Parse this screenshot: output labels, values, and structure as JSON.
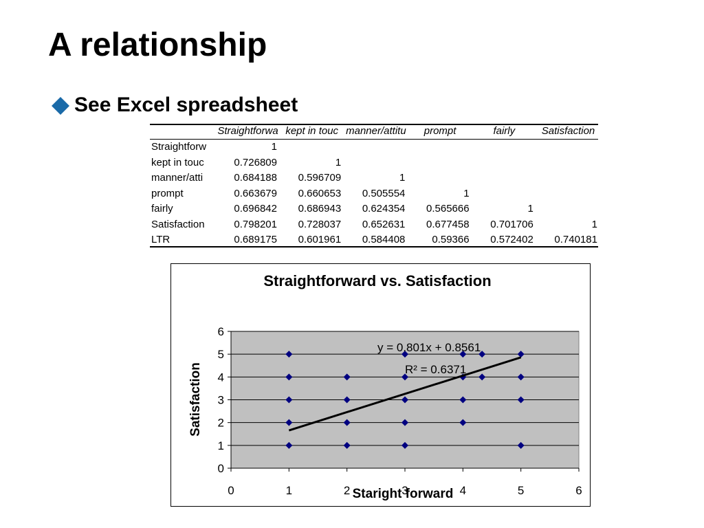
{
  "header": {
    "title": "A relationship"
  },
  "bullets": [
    "See Excel spreadsheet"
  ],
  "table": {
    "columns": [
      "Straightforwa",
      "kept in touc",
      "manner/attitu",
      "prompt",
      "fairly",
      "Satisfaction"
    ],
    "rows": [
      {
        "label": "Straightforw",
        "values": [
          1
        ]
      },
      {
        "label": "kept in touc",
        "values": [
          0.726809,
          1
        ]
      },
      {
        "label": "manner/atti",
        "values": [
          0.684188,
          0.596709,
          1
        ]
      },
      {
        "label": "prompt",
        "values": [
          0.663679,
          0.660653,
          0.505554,
          1
        ]
      },
      {
        "label": "fairly",
        "values": [
          0.696842,
          0.686943,
          0.624354,
          0.565666,
          1
        ]
      },
      {
        "label": "Satisfaction",
        "values": [
          0.798201,
          0.728037,
          0.652631,
          0.677458,
          0.701706,
          1
        ]
      },
      {
        "label": "LTR",
        "values": [
          0.689175,
          0.601961,
          0.584408,
          0.59366,
          0.572402,
          0.740181
        ]
      }
    ]
  },
  "chart_data": {
    "type": "scatter",
    "title": "Straightforward vs. Satisfaction",
    "x_label": "Staright forward",
    "y_label": "Satisfaction",
    "x": [
      1,
      1,
      1,
      1,
      1,
      2,
      2,
      2,
      2,
      3,
      3,
      3,
      3,
      3,
      4,
      4,
      4,
      4,
      4.33,
      4.33,
      5,
      5,
      5,
      5
    ],
    "y": [
      5,
      4,
      3,
      2,
      1,
      4,
      3,
      2,
      1,
      5,
      4,
      3,
      2,
      1,
      5,
      4,
      3,
      2,
      5,
      4,
      5,
      4,
      3,
      1
    ],
    "color": "#000080",
    "xlim": [
      0,
      6
    ],
    "xticks": [
      0,
      1,
      2,
      3,
      4,
      5,
      6
    ],
    "ylim": [
      0,
      6
    ],
    "yticks": [
      0,
      1,
      2,
      3,
      4,
      5,
      6
    ],
    "grid": true,
    "trendline": {
      "slope": 0.801,
      "intercept": 0.8561
    },
    "equation_label": "y = 0.801x + 0.8561",
    "r_squared_label": "R² = 0.6371"
  }
}
